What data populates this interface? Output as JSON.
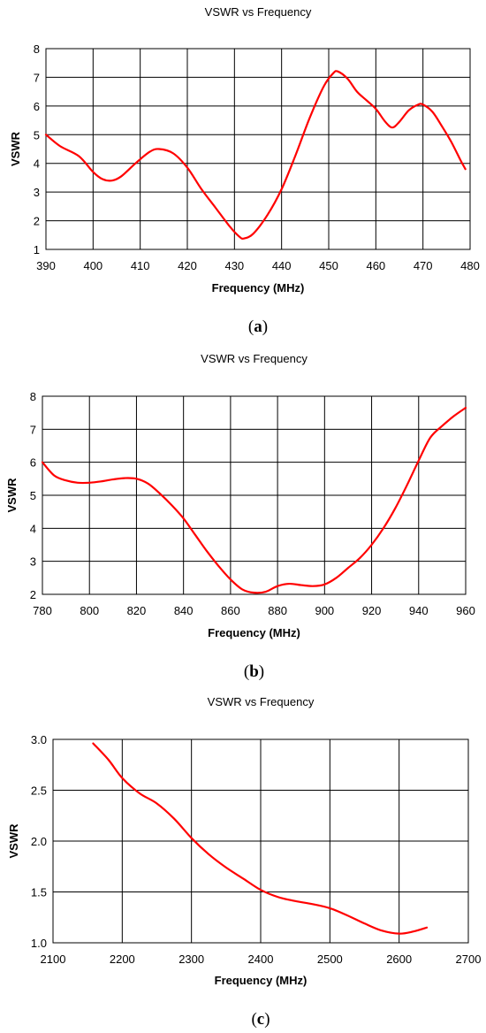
{
  "colors": {
    "curve": "#ff0000",
    "grid": "#000000",
    "background": "#ffffff"
  },
  "chart_data": [
    {
      "type": "line",
      "title": "VSWR vs Frequency",
      "xlabel": "Frequency (MHz)",
      "ylabel": "VSWR",
      "caption": "a",
      "xlim": [
        390,
        480
      ],
      "ylim": [
        1,
        8
      ],
      "xticks": [
        "390",
        "400",
        "410",
        "420",
        "430",
        "440",
        "450",
        "460",
        "470",
        "480"
      ],
      "yticks": [
        "1",
        "2",
        "3",
        "4",
        "5",
        "6",
        "7",
        "8"
      ],
      "grid": true,
      "series": [
        {
          "x": [
            390,
            393,
            397,
            400,
            402,
            404,
            406,
            409,
            412,
            414,
            417,
            420,
            423,
            426,
            429,
            431,
            432,
            434,
            437,
            440,
            443,
            446,
            449,
            451,
            452,
            454,
            456,
            458,
            460,
            462,
            463.5,
            465,
            467,
            469,
            470,
            472,
            474,
            476,
            478,
            479
          ],
          "y": [
            5.0,
            4.6,
            4.25,
            3.7,
            3.45,
            3.4,
            3.55,
            4.0,
            4.4,
            4.5,
            4.35,
            3.85,
            3.1,
            2.45,
            1.8,
            1.45,
            1.38,
            1.55,
            2.2,
            3.1,
            4.3,
            5.6,
            6.7,
            7.15,
            7.2,
            6.95,
            6.5,
            6.2,
            5.9,
            5.45,
            5.25,
            5.45,
            5.85,
            6.05,
            6.05,
            5.8,
            5.3,
            4.75,
            4.1,
            3.8
          ]
        }
      ]
    },
    {
      "type": "line",
      "title": "VSWR vs Frequency",
      "xlabel": "Frequency (MHz)",
      "ylabel": "VSWR",
      "caption": "b",
      "xlim": [
        780,
        960
      ],
      "ylim": [
        2,
        8
      ],
      "xticks": [
        "780",
        "800",
        "820",
        "840",
        "860",
        "880",
        "900",
        "920",
        "940",
        "960"
      ],
      "yticks": [
        "2",
        "3",
        "4",
        "5",
        "6",
        "7",
        "8"
      ],
      "grid": true,
      "series": [
        {
          "x": [
            780,
            785,
            790,
            795,
            800,
            805,
            810,
            815,
            820,
            825,
            830,
            835,
            840,
            845,
            850,
            855,
            860,
            865,
            870,
            875,
            880,
            885,
            890,
            895,
            900,
            905,
            910,
            915,
            920,
            925,
            930,
            935,
            940,
            945,
            950,
            955,
            960
          ],
          "y": [
            6.0,
            5.6,
            5.45,
            5.38,
            5.38,
            5.42,
            5.48,
            5.52,
            5.5,
            5.35,
            5.05,
            4.7,
            4.3,
            3.8,
            3.3,
            2.85,
            2.45,
            2.15,
            2.05,
            2.08,
            2.25,
            2.32,
            2.28,
            2.25,
            2.3,
            2.5,
            2.8,
            3.1,
            3.5,
            4.0,
            4.6,
            5.3,
            6.05,
            6.75,
            7.1,
            7.4,
            7.65
          ]
        }
      ]
    },
    {
      "type": "line",
      "title": "VSWR vs Frequency",
      "xlabel": "Frequency (MHz)",
      "ylabel": "VSWR",
      "caption": "c",
      "xlim": [
        2100,
        2700
      ],
      "ylim": [
        1.0,
        3.0
      ],
      "xticks": [
        "2100",
        "2200",
        "2300",
        "2400",
        "2500",
        "2600",
        "2700"
      ],
      "yticks": [
        "1.0",
        "1.5",
        "2.0",
        "2.5",
        "3.0"
      ],
      "grid": true,
      "series": [
        {
          "x": [
            2158,
            2180,
            2200,
            2225,
            2250,
            2275,
            2300,
            2325,
            2350,
            2375,
            2400,
            2425,
            2450,
            2475,
            2500,
            2525,
            2550,
            2575,
            2600,
            2620,
            2640
          ],
          "y": [
            2.96,
            2.8,
            2.62,
            2.47,
            2.37,
            2.22,
            2.03,
            1.87,
            1.74,
            1.63,
            1.52,
            1.45,
            1.41,
            1.38,
            1.34,
            1.27,
            1.19,
            1.12,
            1.09,
            1.11,
            1.15
          ]
        }
      ]
    }
  ]
}
